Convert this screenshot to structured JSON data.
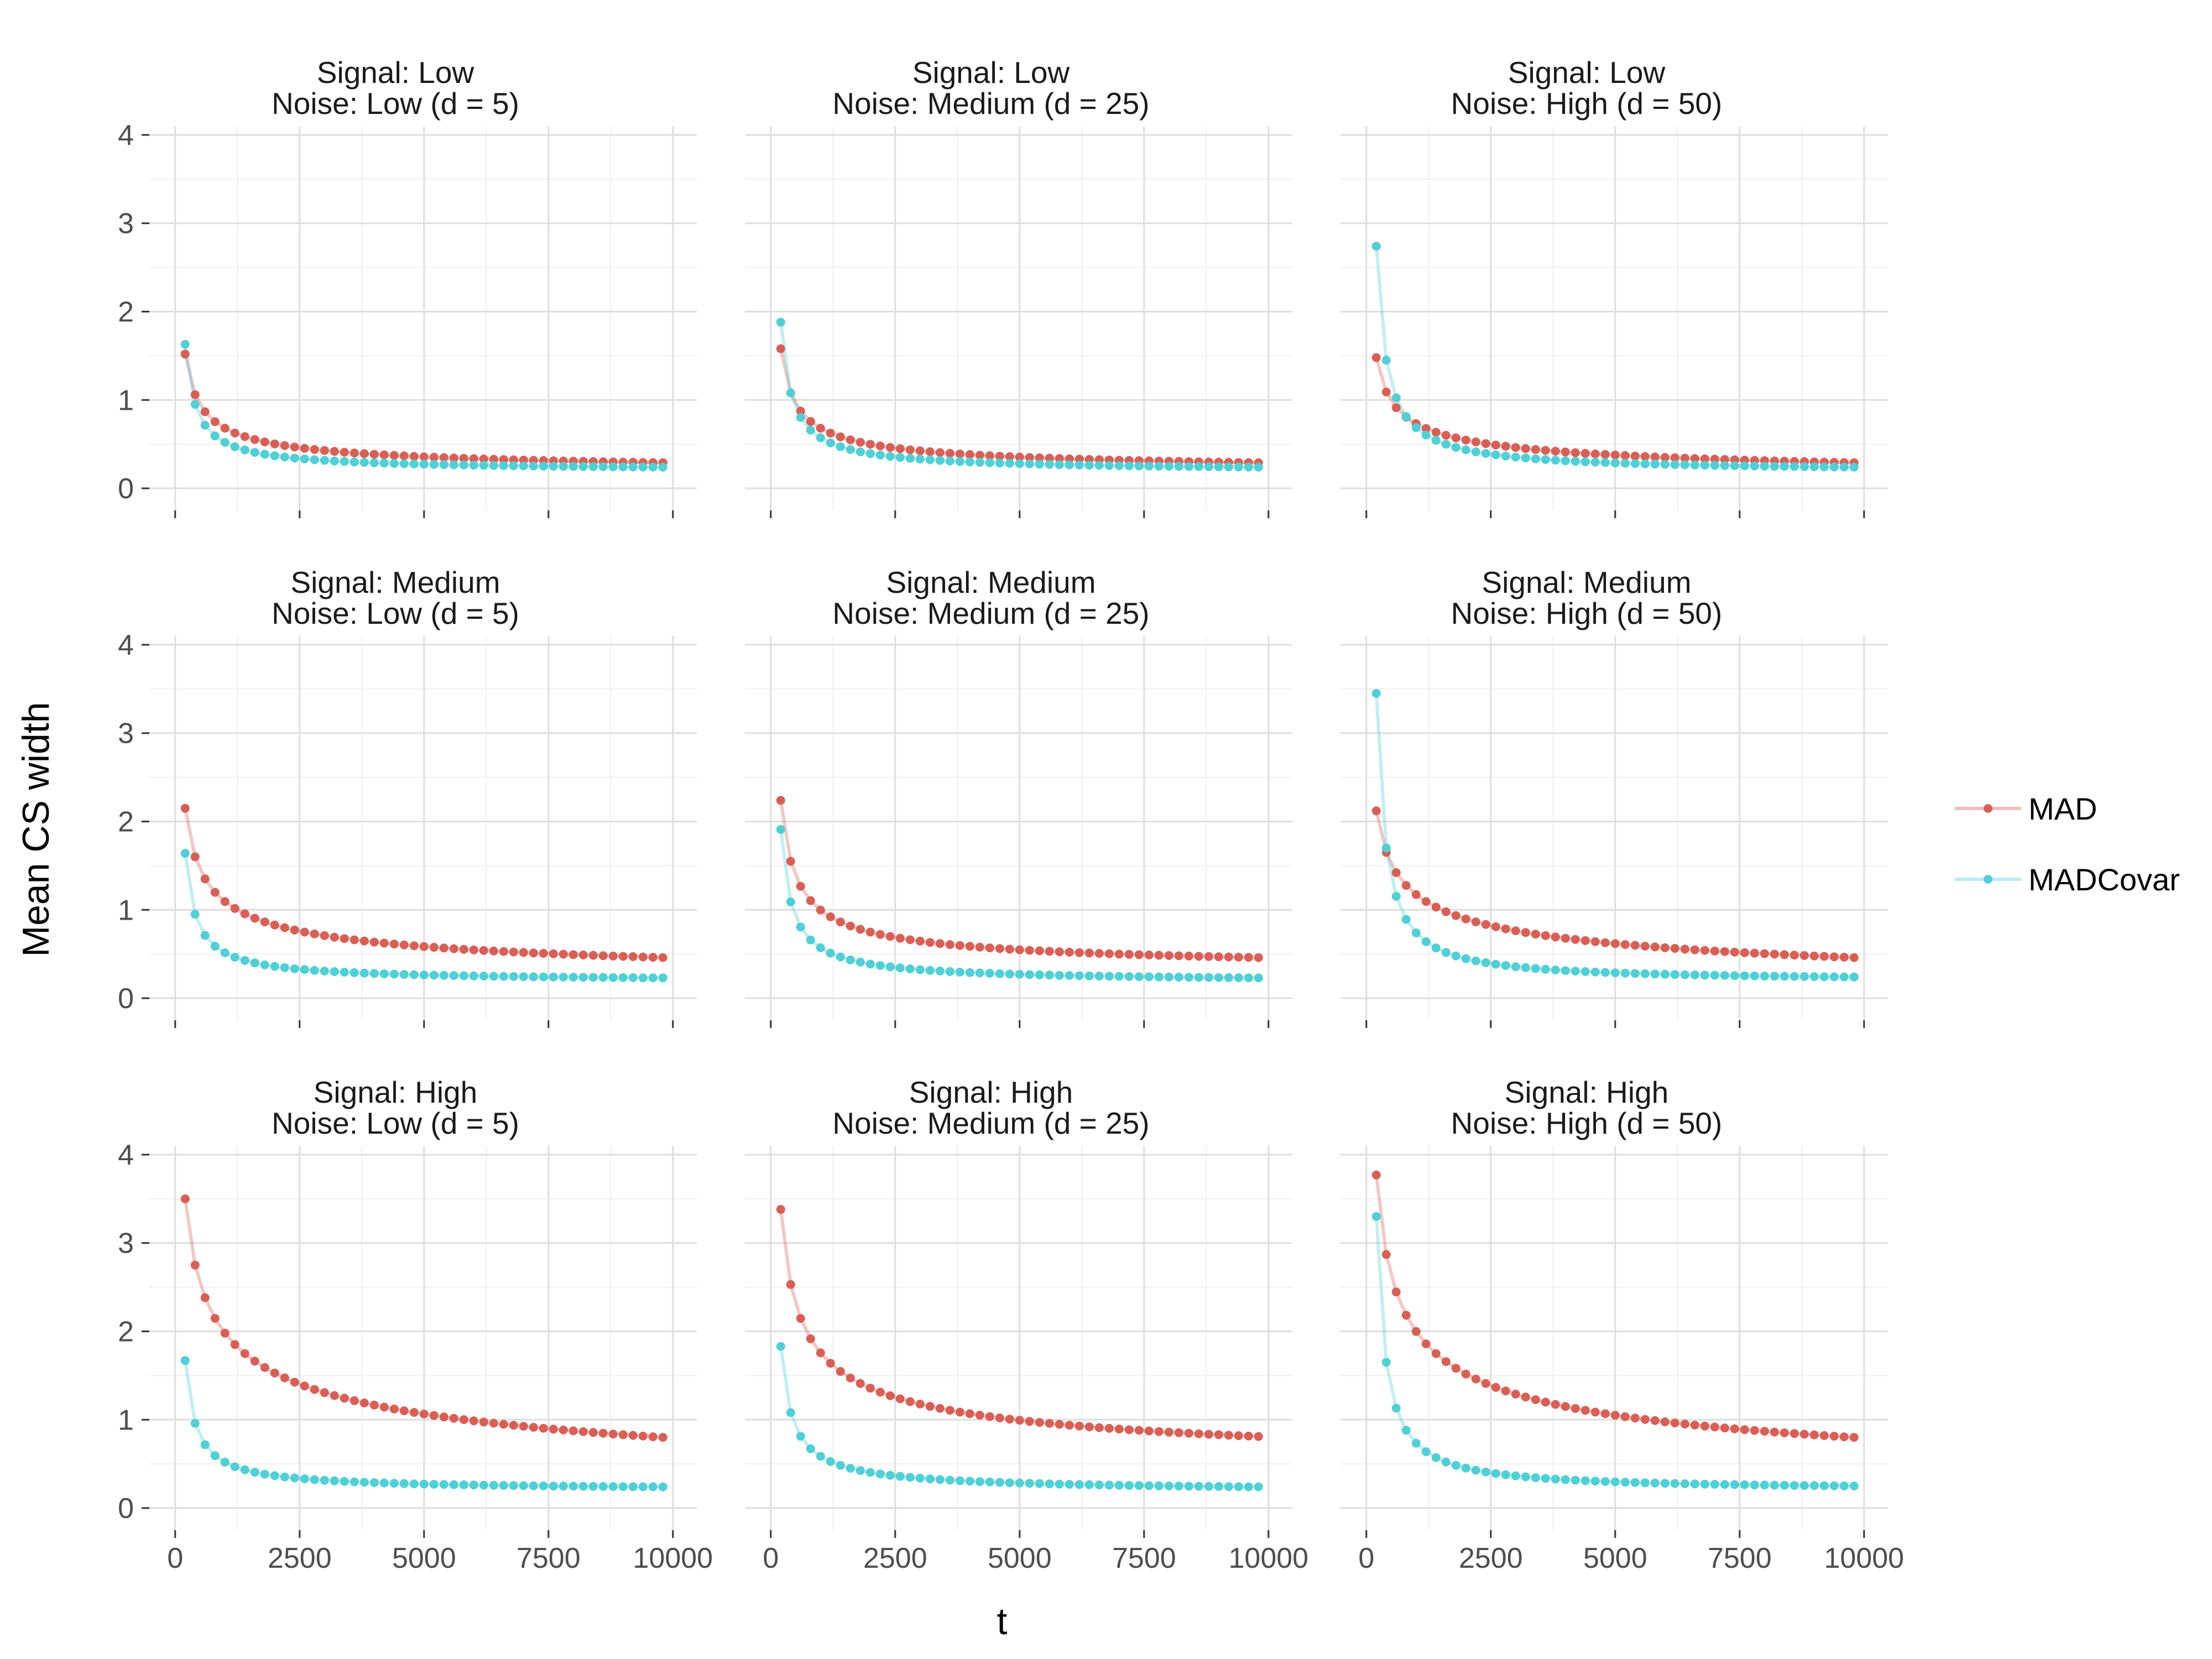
{
  "chart_data": {
    "type": "line",
    "xlabel": "t",
    "ylabel": "Mean CS width",
    "xlim": [
      0,
      10000
    ],
    "ylim": [
      0,
      4
    ],
    "x_ticks": [
      0,
      2500,
      5000,
      7500,
      10000
    ],
    "x_tick_labels": [
      "0",
      "2500",
      "5000",
      "7500",
      "10000"
    ],
    "y_ticks": [
      0,
      1,
      2,
      3,
      4
    ],
    "y_tick_labels": [
      "0",
      "1",
      "2",
      "3",
      "4"
    ],
    "legend": {
      "position": "right",
      "entries": [
        {
          "name": "MAD",
          "color": "#d95f55"
        },
        {
          "name": "MADCovar",
          "color": "#4fcfd6"
        }
      ]
    },
    "series_params_note": "Curves are sampled at t = 200, 400, ..., 9800 (49 points).",
    "x_start": 200,
    "x_step": 200,
    "n_points": 49,
    "panels": [
      {
        "signal": "Signal: Low",
        "noise": "Noise: Low (d = 5)",
        "series": [
          {
            "name": "MAD",
            "first": 1.52,
            "second": 1.06,
            "last": 0.29
          },
          {
            "name": "MADCovar",
            "first": 1.63,
            "second": 0.95,
            "last": 0.24
          }
        ]
      },
      {
        "signal": "Signal: Low",
        "noise": "Noise: Medium (d = 25)",
        "series": [
          {
            "name": "MAD",
            "first": 1.58,
            "second": 1.08,
            "last": 0.29
          },
          {
            "name": "MADCovar",
            "first": 1.88,
            "second": 1.08,
            "last": 0.24
          }
        ]
      },
      {
        "signal": "Signal: Low",
        "noise": "Noise: High (d = 50)",
        "series": [
          {
            "name": "MAD",
            "first": 1.48,
            "second": 1.09,
            "last": 0.29
          },
          {
            "name": "MADCovar",
            "first": 2.74,
            "second": 1.45,
            "last": 0.24
          }
        ]
      },
      {
        "signal": "Signal: Medium",
        "noise": "Noise: Low (d = 5)",
        "series": [
          {
            "name": "MAD",
            "first": 2.15,
            "second": 1.6,
            "last": 0.46
          },
          {
            "name": "MADCovar",
            "first": 1.64,
            "second": 0.95,
            "last": 0.23
          }
        ]
      },
      {
        "signal": "Signal: Medium",
        "noise": "Noise: Medium (d = 25)",
        "series": [
          {
            "name": "MAD",
            "first": 2.24,
            "second": 1.55,
            "last": 0.46
          },
          {
            "name": "MADCovar",
            "first": 1.91,
            "second": 1.09,
            "last": 0.23
          }
        ]
      },
      {
        "signal": "Signal: Medium",
        "noise": "Noise: High (d = 50)",
        "series": [
          {
            "name": "MAD",
            "first": 2.12,
            "second": 1.65,
            "last": 0.46
          },
          {
            "name": "MADCovar",
            "first": 3.45,
            "second": 1.7,
            "last": 0.24
          }
        ]
      },
      {
        "signal": "Signal: High",
        "noise": "Noise: Low (d = 5)",
        "series": [
          {
            "name": "MAD",
            "first": 3.5,
            "second": 2.75,
            "last": 0.8
          },
          {
            "name": "MADCovar",
            "first": 1.67,
            "second": 0.96,
            "last": 0.24
          }
        ]
      },
      {
        "signal": "Signal: High",
        "noise": "Noise: Medium (d = 25)",
        "series": [
          {
            "name": "MAD",
            "first": 3.38,
            "second": 2.53,
            "last": 0.81
          },
          {
            "name": "MADCovar",
            "first": 1.83,
            "second": 1.08,
            "last": 0.24
          }
        ]
      },
      {
        "signal": "Signal: High",
        "noise": "Noise: High (d = 50)",
        "series": [
          {
            "name": "MAD",
            "first": 3.77,
            "second": 2.87,
            "last": 0.8
          },
          {
            "name": "MADCovar",
            "first": 3.3,
            "second": 1.65,
            "last": 0.25
          }
        ]
      }
    ]
  }
}
